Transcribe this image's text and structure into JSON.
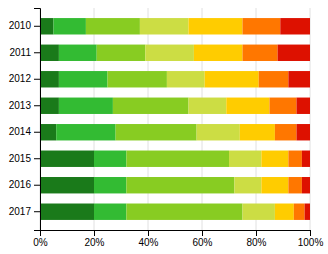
{
  "chart_data": {
    "type": "bar",
    "orientation": "horizontal",
    "stacked": true,
    "grid": true,
    "categories": [
      "2010",
      "2011",
      "2012",
      "2013",
      "2014",
      "2015",
      "2016",
      "2017"
    ],
    "series": [
      {
        "color": "#1a7a1a",
        "values": [
          5,
          7,
          7,
          7,
          6,
          20,
          20,
          20
        ]
      },
      {
        "color": "#33bb33",
        "values": [
          12,
          14,
          18,
          20,
          22,
          12,
          12,
          12
        ]
      },
      {
        "color": "#88cc22",
        "values": [
          20,
          18,
          22,
          28,
          30,
          38,
          40,
          43
        ]
      },
      {
        "color": "#ccdd44",
        "values": [
          18,
          18,
          14,
          14,
          16,
          12,
          10,
          12
        ]
      },
      {
        "color": "#ffcc00",
        "values": [
          20,
          18,
          20,
          16,
          13,
          10,
          10,
          7
        ]
      },
      {
        "color": "#ff7700",
        "values": [
          14,
          13,
          11,
          10,
          8,
          5,
          5,
          4
        ]
      },
      {
        "color": "#dd1100",
        "values": [
          11,
          12,
          8,
          5,
          5,
          3,
          3,
          2
        ]
      }
    ],
    "xlim": [
      0,
      100
    ],
    "xticks": [
      {
        "value": 0,
        "label": "0%"
      },
      {
        "value": 20,
        "label": "20%"
      },
      {
        "value": 40,
        "label": "40%"
      },
      {
        "value": 60,
        "label": "60%"
      },
      {
        "value": 80,
        "label": "80%"
      },
      {
        "value": 100,
        "label": "100%"
      }
    ]
  }
}
